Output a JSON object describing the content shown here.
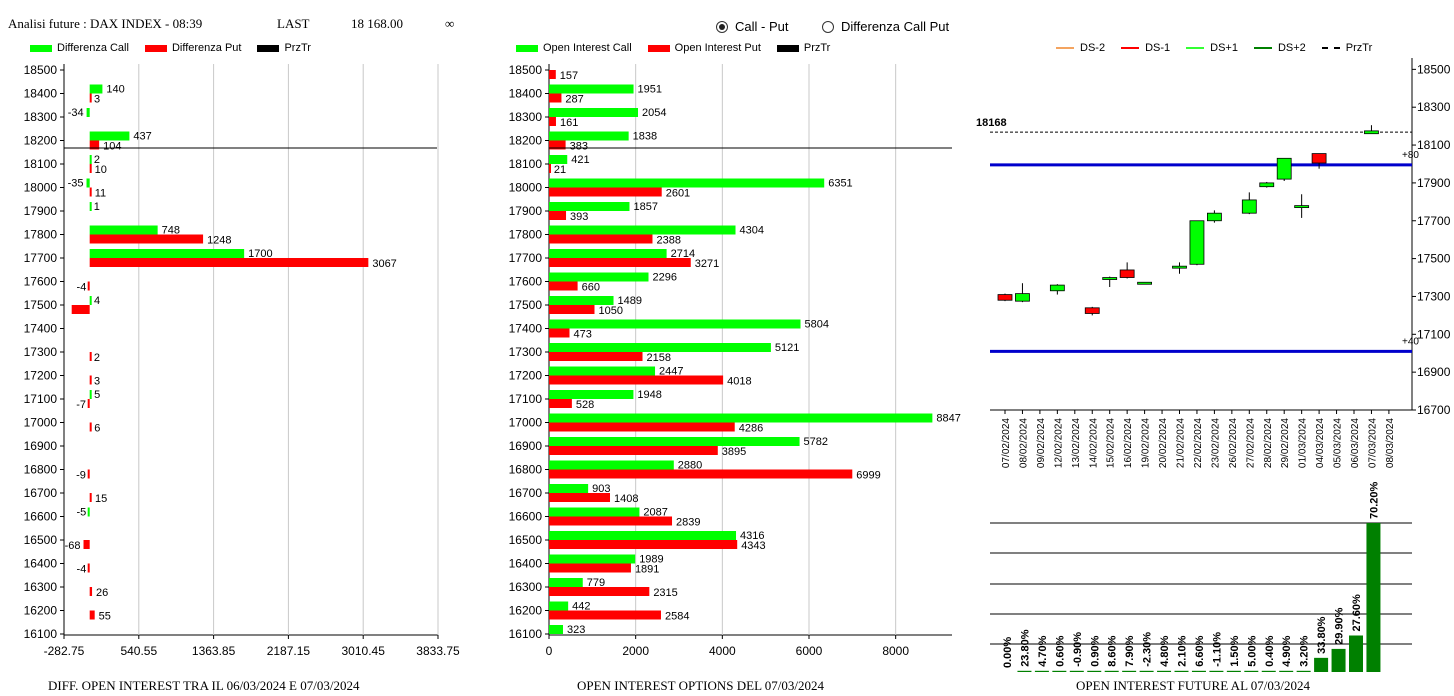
{
  "header": {
    "title": "Analisi future : DAX INDEX - 08:39",
    "last_label": "LAST",
    "last_value": "18 168.00",
    "infinity": "∞"
  },
  "radios": [
    {
      "label": "Call - Put",
      "selected": true
    },
    {
      "label": "Differenza Call Put",
      "selected": false
    }
  ],
  "chart_data": [
    {
      "type": "bar",
      "orientation": "horizontal",
      "caption": "DIFF. OPEN INTEREST TRA IL 06/03/2024 E 07/03/2024",
      "categories": [
        "18500",
        "18400",
        "18300",
        "18200",
        "18100",
        "18000",
        "17900",
        "17800",
        "17700",
        "17600",
        "17500",
        "17400",
        "17300",
        "17200",
        "17100",
        "17000",
        "16900",
        "16800",
        "16700",
        "16600",
        "16500",
        "16400",
        "16300",
        "16200",
        "16100"
      ],
      "series": [
        {
          "name": "Differenza Call",
          "color": "#00ff00",
          "values": [
            null,
            140,
            -34,
            437,
            2,
            -35,
            1,
            748,
            1700,
            null,
            4,
            null,
            null,
            null,
            5,
            null,
            null,
            null,
            null,
            -5,
            null,
            null,
            null,
            null,
            null
          ]
        },
        {
          "name": "Differenza Put",
          "color": "#ff0000",
          "values": [
            null,
            3,
            null,
            104,
            10,
            11,
            null,
            1248,
            3067,
            -4,
            -198,
            null,
            2,
            3,
            -7,
            6,
            null,
            -9,
            15,
            null,
            -68,
            -4,
            26,
            55,
            null
          ]
        }
      ],
      "labels": {
        "call": [
          "",
          "140",
          "-34",
          "437",
          "2",
          "-35",
          "1",
          "748",
          "1700",
          "",
          "4",
          "",
          "",
          "",
          "5",
          "",
          "",
          "",
          "",
          "-5",
          "",
          "",
          "",
          "",
          ""
        ],
        "put": [
          "",
          "3",
          "",
          "104",
          "10",
          "11",
          "",
          "1248",
          "3067",
          "-4",
          "",
          "",
          "2",
          "3",
          "-7",
          "6",
          "",
          "-9",
          "15",
          "",
          "-68",
          "-4",
          "26",
          "55",
          ""
        ]
      },
      "x_ticks": [
        "-282.75",
        "540.55",
        "1363.85",
        "2187.15",
        "3010.45",
        "3833.75"
      ],
      "xlim": [
        -282.75,
        3833.75
      ],
      "price_line": 18168,
      "legend": [
        {
          "name": "Differenza Call",
          "color": "#00ff00"
        },
        {
          "name": "Differenza Put",
          "color": "#ff0000"
        },
        {
          "name": "PrzTr",
          "color": "#000000"
        }
      ]
    },
    {
      "type": "bar",
      "orientation": "horizontal",
      "caption": "OPEN INTEREST OPTIONS DEL 07/03/2024",
      "categories": [
        "18500",
        "18400",
        "18300",
        "18200",
        "18100",
        "18000",
        "17900",
        "17800",
        "17700",
        "17600",
        "17500",
        "17400",
        "17300",
        "17200",
        "17100",
        "17000",
        "16900",
        "16800",
        "16700",
        "16600",
        "16500",
        "16400",
        "16300",
        "16200",
        "16100"
      ],
      "series": [
        {
          "name": "Open Interest Call",
          "color": "#00ff00",
          "values": [
            null,
            1951,
            2054,
            1838,
            421,
            6351,
            1857,
            4304,
            2714,
            2296,
            1489,
            5804,
            5121,
            2447,
            1948,
            8847,
            5782,
            2880,
            903,
            2087,
            4316,
            1989,
            779,
            442,
            323
          ]
        },
        {
          "name": "Open Interest Put",
          "color": "#ff0000",
          "values": [
            157,
            287,
            161,
            383,
            21,
            2601,
            393,
            2388,
            3271,
            660,
            1050,
            473,
            2158,
            4018,
            528,
            4286,
            3895,
            6999,
            1408,
            2839,
            4343,
            1891,
            2315,
            2584,
            null
          ]
        }
      ],
      "x_ticks": [
        "0",
        "2000",
        "4000",
        "6000",
        "8000"
      ],
      "xlim": [
        0,
        9300
      ],
      "price_line": 18168,
      "legend": [
        {
          "name": "Open Interest Call",
          "color": "#00ff00"
        },
        {
          "name": "Open Interest Put",
          "color": "#ff0000"
        },
        {
          "name": "PrzTr",
          "color": "#000000"
        }
      ]
    },
    {
      "type": "candlestick",
      "legend": [
        {
          "name": "DS-2",
          "color": "#f4a460",
          "style": "solid"
        },
        {
          "name": "DS-1",
          "color": "#ff0000",
          "style": "solid"
        },
        {
          "name": "DS+1",
          "color": "#33ff33",
          "style": "solid"
        },
        {
          "name": "DS+2",
          "color": "#008000",
          "style": "solid"
        },
        {
          "name": "PrzTr",
          "color": "#000000",
          "style": "dashed"
        }
      ],
      "y_ticks": [
        "18500",
        "18300",
        "18100",
        "17900",
        "17700",
        "17500",
        "17300",
        "17100",
        "16900",
        "16700"
      ],
      "ylim": [
        16700,
        18560
      ],
      "price_label": "18168",
      "price_line": 18168,
      "levels": [
        {
          "value": 17995,
          "label": "+80"
        },
        {
          "value": 17010,
          "label": "+40"
        }
      ],
      "dates": [
        "07/02/2024",
        "08/02/2024",
        "09/02/2024",
        "12/02/2024",
        "13/02/2024",
        "14/02/2024",
        "15/02/2024",
        "16/02/2024",
        "19/02/2024",
        "20/02/2024",
        "21/02/2024",
        "22/02/2024",
        "23/02/2024",
        "26/02/2024",
        "27/02/2024",
        "28/02/2024",
        "29/02/2024",
        "01/03/2024",
        "04/03/2024",
        "05/03/2024",
        "06/03/2024",
        "07/03/2024",
        "08/03/2024"
      ],
      "candles": [
        {
          "slot": 0,
          "o": 17280,
          "c": 17310,
          "h": 17315,
          "l": 17275,
          "color": "#ff0000"
        },
        {
          "slot": 1,
          "o": 17275,
          "c": 17315,
          "h": 17370,
          "l": 17270,
          "color": "#00ff00"
        },
        {
          "slot": 3,
          "o": 17330,
          "c": 17360,
          "h": 17365,
          "l": 17310,
          "color": "#00ff00"
        },
        {
          "slot": 5,
          "o": 17240,
          "c": 17210,
          "h": 17245,
          "l": 17200,
          "color": "#ff0000"
        },
        {
          "slot": 6,
          "o": 17395,
          "c": 17400,
          "h": 17405,
          "l": 17350,
          "color": "#00ff00"
        },
        {
          "slot": 7,
          "o": 17440,
          "c": 17400,
          "h": 17480,
          "l": 17395,
          "color": "#ff0000"
        },
        {
          "slot": 8,
          "o": 17370,
          "c": 17375,
          "h": 17375,
          "l": 17370,
          "color": "#00ff00"
        },
        {
          "slot": 10,
          "o": 17450,
          "c": 17460,
          "h": 17480,
          "l": 17420,
          "color": "#00ff00"
        },
        {
          "slot": 11,
          "o": 17470,
          "c": 17700,
          "h": 17700,
          "l": 17465,
          "color": "#00ff00"
        },
        {
          "slot": 12,
          "o": 17700,
          "c": 17740,
          "h": 17755,
          "l": 17690,
          "color": "#00ff00"
        },
        {
          "slot": 14,
          "o": 17740,
          "c": 17810,
          "h": 17850,
          "l": 17735,
          "color": "#00ff00"
        },
        {
          "slot": 15,
          "o": 17880,
          "c": 17900,
          "h": 17905,
          "l": 17875,
          "color": "#00ff00"
        },
        {
          "slot": 16,
          "o": 17920,
          "c": 18030,
          "h": 18030,
          "l": 17910,
          "color": "#00ff00"
        },
        {
          "slot": 17,
          "o": 17770,
          "c": 17780,
          "h": 17840,
          "l": 17715,
          "color": "#00ff00"
        },
        {
          "slot": 18,
          "o": 18055,
          "c": 18005,
          "h": 18055,
          "l": 17975,
          "color": "#ff0000"
        },
        {
          "slot": 21,
          "o": 18160,
          "c": 18175,
          "h": 18205,
          "l": 18160,
          "color": "#00ff00"
        }
      ]
    },
    {
      "type": "bar",
      "caption": "OPEN INTEREST FUTURE AL 07/03/2024",
      "labels": [
        "0.00%",
        "23.80%",
        "4.70%",
        "0.60%",
        "-0.90%",
        "0.90%",
        "8.60%",
        "7.90%",
        "-2.30%",
        "4.80%",
        "2.10%",
        "6.60%",
        "-1.10%",
        "1.50%",
        "5.00%",
        "0.40%",
        "4.90%",
        "3.20%",
        "33.80%",
        "29.90%",
        "27.60%",
        "70.20%"
      ],
      "values": [
        0.0,
        0.8,
        0.8,
        0.8,
        0.8,
        0.8,
        0.8,
        0.8,
        0.8,
        0.8,
        0.8,
        0.8,
        0.8,
        0.8,
        0.8,
        0.8,
        0.8,
        0.8,
        9.5,
        15.5,
        24.5,
        100
      ],
      "color": "#008000"
    }
  ]
}
